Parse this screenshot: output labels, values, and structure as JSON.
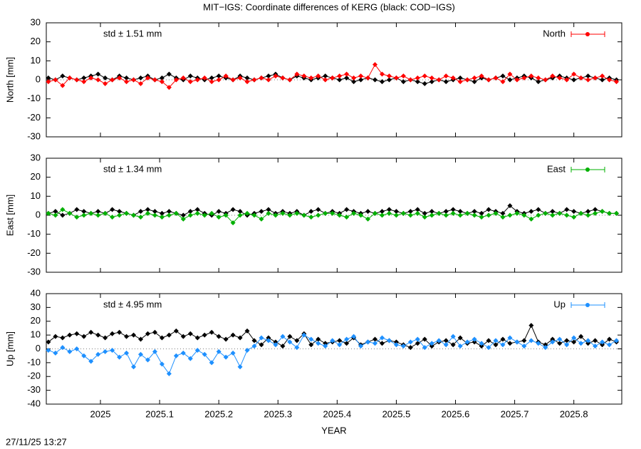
{
  "title": "MIT−IGS: Coordinate differences of KERG (black: COD−IGS)",
  "timestamp": "27/11/25 13:27",
  "chart_data": [
    {
      "type": "line",
      "ylabel": "North [mm]",
      "annotation": "std ± 1.51 mm",
      "annotation_color": "#ff0000",
      "xlim": [
        2024.9085,
        2025.881
      ],
      "xticks": [
        2025,
        2025.1,
        2025.2,
        2025.3,
        2025.4,
        2025.5,
        2025.6,
        2025.7,
        2025.8
      ],
      "ylim": [
        -30,
        30
      ],
      "yticks": [
        -30,
        -20,
        -10,
        0,
        10,
        20,
        30
      ],
      "zero_line": true,
      "legend": "upper right",
      "x": [
        2024.912,
        2024.924,
        2024.936,
        2024.948,
        2024.96,
        2024.972,
        2024.984,
        2024.996,
        2025.008,
        2025.02,
        2025.032,
        2025.044,
        2025.056,
        2025.068,
        2025.08,
        2025.092,
        2025.104,
        2025.116,
        2025.128,
        2025.14,
        2025.152,
        2025.164,
        2025.176,
        2025.188,
        2025.2,
        2025.212,
        2025.224,
        2025.236,
        2025.248,
        2025.26,
        2025.272,
        2025.284,
        2025.296,
        2025.308,
        2025.32,
        2025.332,
        2025.344,
        2025.356,
        2025.368,
        2025.38,
        2025.392,
        2025.404,
        2025.416,
        2025.428,
        2025.44,
        2025.452,
        2025.464,
        2025.476,
        2025.488,
        2025.5,
        2025.512,
        2025.524,
        2025.536,
        2025.548,
        2025.56,
        2025.572,
        2025.584,
        2025.596,
        2025.608,
        2025.62,
        2025.632,
        2025.644,
        2025.656,
        2025.668,
        2025.68,
        2025.692,
        2025.704,
        2025.716,
        2025.728,
        2025.74,
        2025.752,
        2025.764,
        2025.776,
        2025.788,
        2025.8,
        2025.812,
        2025.824,
        2025.836,
        2025.848,
        2025.86,
        2025.872
      ],
      "series": [
        {
          "color": "#000000",
          "values": [
            1,
            0,
            2,
            1,
            0,
            1,
            2,
            3,
            1,
            0,
            2,
            1,
            0,
            1,
            2,
            0,
            1,
            3,
            1,
            0,
            2,
            1,
            0,
            1,
            2,
            1,
            0,
            2,
            1,
            0,
            1,
            2,
            3,
            1,
            0,
            2,
            1,
            0,
            1,
            2,
            1,
            0,
            1,
            -1,
            0,
            1,
            0,
            -1,
            0,
            1,
            -1,
            0,
            -1,
            -2,
            -1,
            0,
            -1,
            0,
            1,
            0,
            -1,
            1,
            0,
            1,
            2,
            0,
            1,
            2,
            1,
            -1,
            0,
            1,
            2,
            1,
            0,
            1,
            2,
            1,
            0,
            1,
            0
          ]
        },
        {
          "name": "North",
          "color": "#ff0000",
          "values": [
            -1,
            0,
            -3,
            1,
            0,
            -1,
            1,
            0,
            -2,
            0,
            1,
            -1,
            0,
            -2,
            1,
            0,
            -1,
            -4,
            0,
            1,
            -1,
            0,
            1,
            -1,
            0,
            2,
            0,
            1,
            -1,
            0,
            1,
            0,
            2,
            1,
            0,
            3,
            2,
            1,
            2,
            0,
            1,
            2,
            3,
            1,
            2,
            1,
            8,
            3,
            2,
            1,
            2,
            0,
            1,
            2,
            1,
            0,
            2,
            1,
            -1,
            0,
            1,
            2,
            0,
            1,
            -1,
            3,
            0,
            1,
            2,
            1,
            0,
            2,
            1,
            0,
            3,
            1,
            0,
            1,
            2,
            0,
            -1
          ]
        }
      ]
    },
    {
      "type": "line",
      "ylabel": "East [mm]",
      "annotation": "std ± 1.34 mm",
      "annotation_color": "#00b000",
      "xlim": [
        2024.9085,
        2025.881
      ],
      "xticks": [
        2025,
        2025.1,
        2025.2,
        2025.3,
        2025.4,
        2025.5,
        2025.6,
        2025.7,
        2025.8
      ],
      "ylim": [
        -30,
        30
      ],
      "yticks": [
        -30,
        -20,
        -10,
        0,
        10,
        20,
        30
      ],
      "zero_line": true,
      "legend": "upper right",
      "x": [
        2024.912,
        2024.924,
        2024.936,
        2024.948,
        2024.96,
        2024.972,
        2024.984,
        2024.996,
        2025.008,
        2025.02,
        2025.032,
        2025.044,
        2025.056,
        2025.068,
        2025.08,
        2025.092,
        2025.104,
        2025.116,
        2025.128,
        2025.14,
        2025.152,
        2025.164,
        2025.176,
        2025.188,
        2025.2,
        2025.212,
        2025.224,
        2025.236,
        2025.248,
        2025.26,
        2025.272,
        2025.284,
        2025.296,
        2025.308,
        2025.32,
        2025.332,
        2025.344,
        2025.356,
        2025.368,
        2025.38,
        2025.392,
        2025.404,
        2025.416,
        2025.428,
        2025.44,
        2025.452,
        2025.464,
        2025.476,
        2025.488,
        2025.5,
        2025.512,
        2025.524,
        2025.536,
        2025.548,
        2025.56,
        2025.572,
        2025.584,
        2025.596,
        2025.608,
        2025.62,
        2025.632,
        2025.644,
        2025.656,
        2025.668,
        2025.68,
        2025.692,
        2025.704,
        2025.716,
        2025.728,
        2025.74,
        2025.752,
        2025.764,
        2025.776,
        2025.788,
        2025.8,
        2025.812,
        2025.824,
        2025.836,
        2025.848,
        2025.86,
        2025.872
      ],
      "series": [
        {
          "color": "#000000",
          "values": [
            1,
            2,
            0,
            1,
            3,
            2,
            1,
            2,
            1,
            3,
            2,
            1,
            0,
            2,
            3,
            2,
            1,
            2,
            1,
            0,
            2,
            3,
            1,
            0,
            2,
            1,
            3,
            2,
            0,
            1,
            2,
            3,
            1,
            2,
            1,
            2,
            0,
            2,
            3,
            1,
            2,
            1,
            3,
            2,
            1,
            2,
            1,
            2,
            3,
            2,
            1,
            2,
            3,
            1,
            2,
            1,
            2,
            3,
            2,
            1,
            2,
            1,
            3,
            2,
            1,
            5,
            2,
            1,
            2,
            3,
            1,
            2,
            1,
            3,
            2,
            1,
            2,
            3,
            2,
            1,
            1
          ]
        },
        {
          "name": "East",
          "color": "#00b000",
          "values": [
            1,
            0,
            3,
            1,
            -1,
            0,
            1,
            0,
            1,
            -1,
            0,
            1,
            0,
            -1,
            1,
            0,
            -1,
            0,
            1,
            -2,
            0,
            1,
            0,
            1,
            -1,
            0,
            -4,
            0,
            1,
            0,
            -2,
            1,
            0,
            1,
            0,
            1,
            0,
            -1,
            0,
            1,
            1,
            0,
            -1,
            1,
            0,
            -2,
            1,
            0,
            1,
            0,
            1,
            0,
            1,
            -1,
            0,
            1,
            0,
            1,
            0,
            1,
            0,
            -1,
            0,
            1,
            -1,
            0,
            1,
            0,
            -2,
            0,
            1,
            0,
            1,
            0,
            -1,
            1,
            0,
            1,
            2,
            1,
            1
          ]
        }
      ]
    },
    {
      "type": "line",
      "ylabel": "Up [mm]",
      "xlabel": "YEAR",
      "annotation": "std ± 4.95 mm",
      "annotation_color": "#1e90ff",
      "xlim": [
        2024.9085,
        2025.881
      ],
      "xticks": [
        2025,
        2025.1,
        2025.2,
        2025.3,
        2025.4,
        2025.5,
        2025.6,
        2025.7,
        2025.8
      ],
      "ylim": [
        -40,
        40
      ],
      "yticks": [
        -40,
        -30,
        -20,
        -10,
        0,
        10,
        20,
        30,
        40
      ],
      "zero_line": true,
      "legend": "upper right",
      "x": [
        2024.912,
        2024.924,
        2024.936,
        2024.948,
        2024.96,
        2024.972,
        2024.984,
        2024.996,
        2025.008,
        2025.02,
        2025.032,
        2025.044,
        2025.056,
        2025.068,
        2025.08,
        2025.092,
        2025.104,
        2025.116,
        2025.128,
        2025.14,
        2025.152,
        2025.164,
        2025.176,
        2025.188,
        2025.2,
        2025.212,
        2025.224,
        2025.236,
        2025.248,
        2025.26,
        2025.272,
        2025.284,
        2025.296,
        2025.308,
        2025.32,
        2025.332,
        2025.344,
        2025.356,
        2025.368,
        2025.38,
        2025.392,
        2025.404,
        2025.416,
        2025.428,
        2025.44,
        2025.452,
        2025.464,
        2025.476,
        2025.488,
        2025.5,
        2025.512,
        2025.524,
        2025.536,
        2025.548,
        2025.56,
        2025.572,
        2025.584,
        2025.596,
        2025.608,
        2025.62,
        2025.632,
        2025.644,
        2025.656,
        2025.668,
        2025.68,
        2025.692,
        2025.704,
        2025.716,
        2025.728,
        2025.74,
        2025.752,
        2025.764,
        2025.776,
        2025.788,
        2025.8,
        2025.812,
        2025.824,
        2025.836,
        2025.848,
        2025.86,
        2025.872
      ],
      "series": [
        {
          "color": "#000000",
          "values": [
            5,
            9,
            8,
            10,
            11,
            9,
            12,
            10,
            8,
            11,
            12,
            9,
            10,
            7,
            11,
            12,
            8,
            10,
            13,
            9,
            11,
            8,
            10,
            12,
            9,
            7,
            10,
            8,
            13,
            6,
            3,
            8,
            5,
            2,
            9,
            6,
            11,
            3,
            7,
            4,
            5,
            6,
            4,
            8,
            3,
            5,
            7,
            4,
            6,
            5,
            3,
            1,
            4,
            7,
            2,
            5,
            6,
            3,
            8,
            4,
            5,
            2,
            6,
            3,
            7,
            4,
            5,
            6,
            17,
            5,
            3,
            7,
            4,
            6,
            5,
            9,
            4,
            6,
            3,
            7,
            5
          ]
        },
        {
          "name": "Up",
          "color": "#1e90ff",
          "values": [
            -1,
            -3,
            1,
            -2,
            0,
            -5,
            -9,
            -4,
            -2,
            -1,
            -6,
            -3,
            -13,
            -4,
            -8,
            -2,
            -11,
            -18,
            -5,
            -3,
            -7,
            -1,
            -4,
            -10,
            -2,
            -6,
            -3,
            -13,
            -1,
            2,
            8,
            6,
            3,
            9,
            5,
            1,
            10,
            7,
            4,
            2,
            6,
            3,
            7,
            9,
            2,
            5,
            4,
            8,
            6,
            3,
            2,
            5,
            7,
            1,
            4,
            6,
            3,
            9,
            2,
            5,
            7,
            4,
            1,
            6,
            3,
            8,
            5,
            2,
            6,
            4,
            1,
            5,
            7,
            3,
            8,
            4,
            6,
            2,
            5,
            3,
            6
          ]
        }
      ]
    }
  ]
}
